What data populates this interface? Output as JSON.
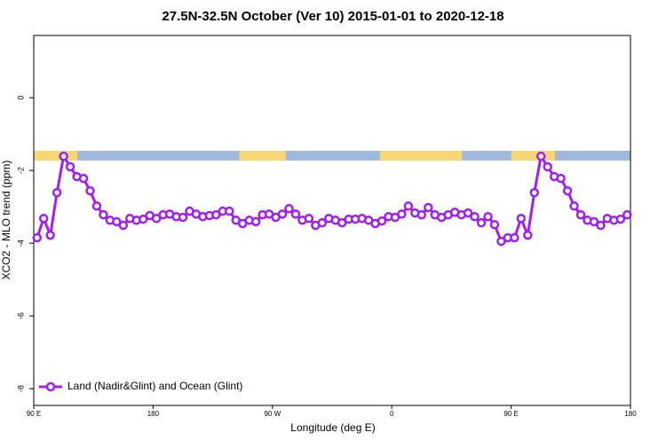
{
  "chart_data": {
    "type": "line",
    "title": "27.5N-32.5N October (Ver 10)   2015-01-01 to 2020-12-18",
    "xlabel": "Longitude (deg E)",
    "ylabel": "XCO2 - MLO trend (ppm)",
    "x": [
      92.5,
      97.5,
      102.5,
      107.5,
      112.5,
      117.5,
      122.5,
      127.5,
      132.5,
      137.5,
      142.5,
      147.5,
      152.5,
      157.5,
      162.5,
      167.5,
      172.5,
      177.5,
      182.5,
      187.5,
      192.5,
      197.5,
      202.5,
      207.5,
      212.5,
      217.5,
      222.5,
      227.5,
      232.5,
      237.5,
      242.5,
      247.5,
      252.5,
      257.5,
      262.5,
      267.5,
      272.5,
      277.5,
      282.5,
      287.5,
      292.5,
      297.5,
      302.5,
      307.5,
      312.5,
      317.5,
      322.5,
      327.5,
      332.5,
      337.5,
      342.5,
      347.5,
      352.5,
      357.5,
      362.5,
      367.5,
      372.5,
      377.5,
      382.5,
      387.5,
      392.5,
      397.5,
      402.5,
      407.5,
      412.5,
      417.5,
      422.5,
      427.5,
      432.5,
      437.5,
      442.5,
      447.5,
      452.5,
      457.5,
      462.5,
      467.5,
      472.5,
      477.5,
      482.5,
      487.5,
      492.5,
      497.5,
      502.5,
      507.5,
      512.5,
      517.5,
      522.5,
      527.5,
      532.5,
      537.5
    ],
    "series": [
      {
        "name": "Land (Nadir&Glint) and Ocean (Glint)",
        "color": "#a020f0",
        "values": [
          -3.85,
          -3.32,
          -3.78,
          -2.61,
          -1.61,
          -1.9,
          -2.17,
          -2.22,
          -2.56,
          -2.98,
          -3.22,
          -3.37,
          -3.41,
          -3.51,
          -3.32,
          -3.37,
          -3.34,
          -3.24,
          -3.32,
          -3.22,
          -3.2,
          -3.27,
          -3.29,
          -3.12,
          -3.2,
          -3.27,
          -3.24,
          -3.22,
          -3.12,
          -3.12,
          -3.37,
          -3.46,
          -3.37,
          -3.41,
          -3.22,
          -3.2,
          -3.29,
          -3.2,
          -3.05,
          -3.2,
          -3.37,
          -3.32,
          -3.51,
          -3.44,
          -3.32,
          -3.37,
          -3.44,
          -3.34,
          -3.34,
          -3.32,
          -3.37,
          -3.46,
          -3.39,
          -3.27,
          -3.29,
          -3.2,
          -2.98,
          -3.17,
          -3.22,
          -3.02,
          -3.22,
          -3.29,
          -3.22,
          -3.15,
          -3.22,
          -3.17,
          -3.27,
          -3.44,
          -3.27,
          -3.49,
          -3.95,
          -3.85,
          -3.85,
          -3.32,
          -3.78,
          -2.61,
          -1.61,
          -1.9,
          -2.17,
          -2.22,
          -2.56,
          -2.98,
          -3.22,
          -3.37,
          -3.41,
          -3.51,
          -3.32,
          -3.37,
          -3.34,
          -3.22
        ]
      }
    ],
    "xlim": [
      90,
      540
    ],
    "xticks": [
      {
        "value": 90,
        "label": "90 E"
      },
      180,
      {
        "value": 270,
        "label": "90 W"
      },
      {
        "value": 360,
        "label": "0"
      },
      {
        "value": 450,
        "label": "90 E"
      },
      {
        "value": 540,
        "label": "180"
      }
    ],
    "ylim": [
      -8.46,
      1.71
    ],
    "yticks": [
      -8,
      -6,
      -4,
      -2,
      0
    ],
    "legend": "bottom-left",
    "land_mask": {
      "ocean_color": "#9fb8db",
      "land_color": "#f7d774",
      "land_ranges": [
        [
          90,
          123
        ],
        [
          245,
          280
        ],
        [
          351,
          413
        ],
        [
          450,
          483
        ]
      ]
    }
  }
}
